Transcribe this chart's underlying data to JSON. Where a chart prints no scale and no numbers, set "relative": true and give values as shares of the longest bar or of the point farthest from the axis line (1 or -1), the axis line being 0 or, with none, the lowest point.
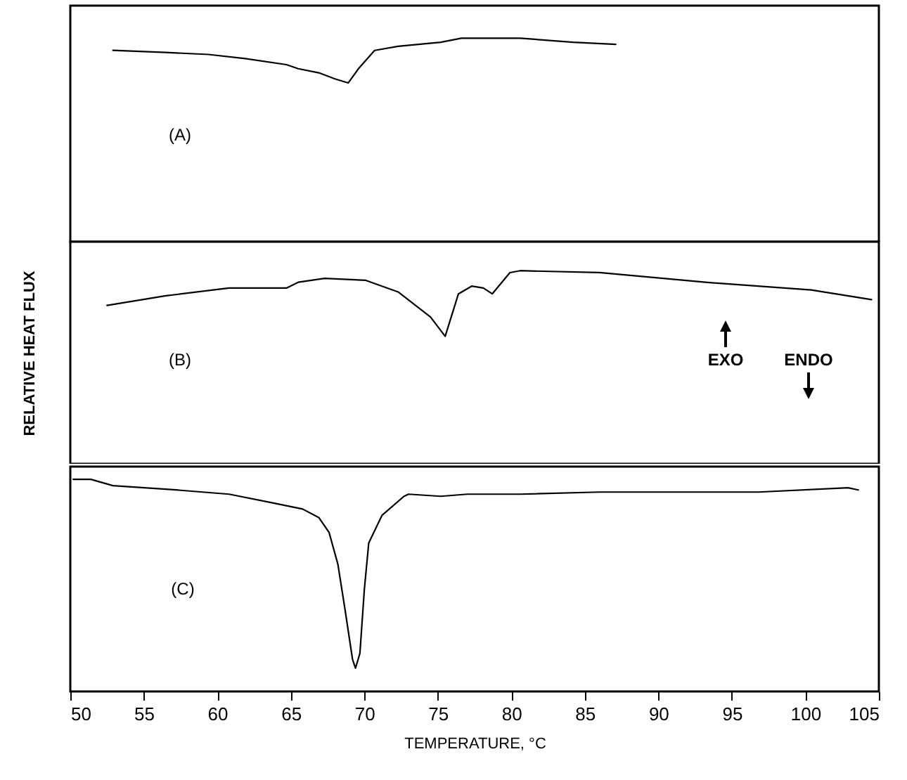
{
  "chart_data": [
    {
      "type": "line",
      "relative": true,
      "xlim": [
        50,
        105
      ],
      "tick_labels": false,
      "annotations": [
        "(A)"
      ],
      "series": [
        {
          "color": "#000000",
          "x": [
            52.9,
            56.5,
            59.4,
            61.9,
            64.7,
            65.5,
            66.9,
            68.0,
            68.9,
            69.6,
            70.7,
            72.3,
            75.2,
            76.6,
            80.6,
            84.2,
            87.1
          ],
          "values": [
            0.94,
            0.93,
            0.92,
            0.9,
            0.87,
            0.85,
            0.83,
            0.8,
            0.78,
            0.85,
            0.94,
            0.96,
            0.98,
            1,
            1.0,
            0.98,
            0.97
          ]
        }
      ]
    },
    {
      "type": "line",
      "relative": true,
      "xlim": [
        50,
        105
      ],
      "tick_labels": false,
      "ylabel": "RELATIVE HEAT FLUX",
      "annotations": [
        "(B)",
        "EXO",
        "ENDO"
      ],
      "series": [
        {
          "color": "#000000",
          "x": [
            52.5,
            56.5,
            60.8,
            64.7,
            65.5,
            67.3,
            70.1,
            72.3,
            74.5,
            75.5,
            76.4,
            77.3,
            78.1,
            78.7,
            79.9,
            80.6,
            86.0,
            93.2,
            100.4,
            104.5
          ],
          "values": [
            0.82,
            0.87,
            0.91,
            0.91,
            0.94,
            0.96,
            0.95,
            0.89,
            0.76,
            0.66,
            0.88,
            0.92,
            0.91,
            0.88,
            0.99,
            1,
            0.99,
            0.94,
            0.9,
            0.85
          ]
        }
      ]
    },
    {
      "type": "line",
      "relative": true,
      "xlim": [
        50,
        105
      ],
      "xticks": [
        50,
        55,
        60,
        65,
        70,
        75,
        80,
        85,
        90,
        95,
        100,
        105
      ],
      "xlabel": "TEMPERATURE, °C",
      "tick_labels": "x",
      "annotations": [
        "(C)"
      ],
      "series": [
        {
          "color": "#000000",
          "x": [
            50.2,
            51.4,
            52.9,
            57.2,
            60.8,
            63.7,
            65.8,
            66.9,
            67.6,
            68.2,
            68.7,
            69.2,
            69.4,
            69.7,
            70.0,
            70.3,
            71.2,
            72.7,
            73.0,
            75.2,
            77.0,
            80.6,
            86.0,
            89.6,
            96.8,
            102.9,
            103.6
          ],
          "values": [
            1,
            1.0,
            0.97,
            0.95,
            0.93,
            0.89,
            0.86,
            0.82,
            0.75,
            0.6,
            0.38,
            0.15,
            0.11,
            0.18,
            0.48,
            0.7,
            0.83,
            0.92,
            0.93,
            0.92,
            0.93,
            0.93,
            0.94,
            0.94,
            0.94,
            0.96,
            0.95
          ]
        }
      ]
    }
  ]
}
